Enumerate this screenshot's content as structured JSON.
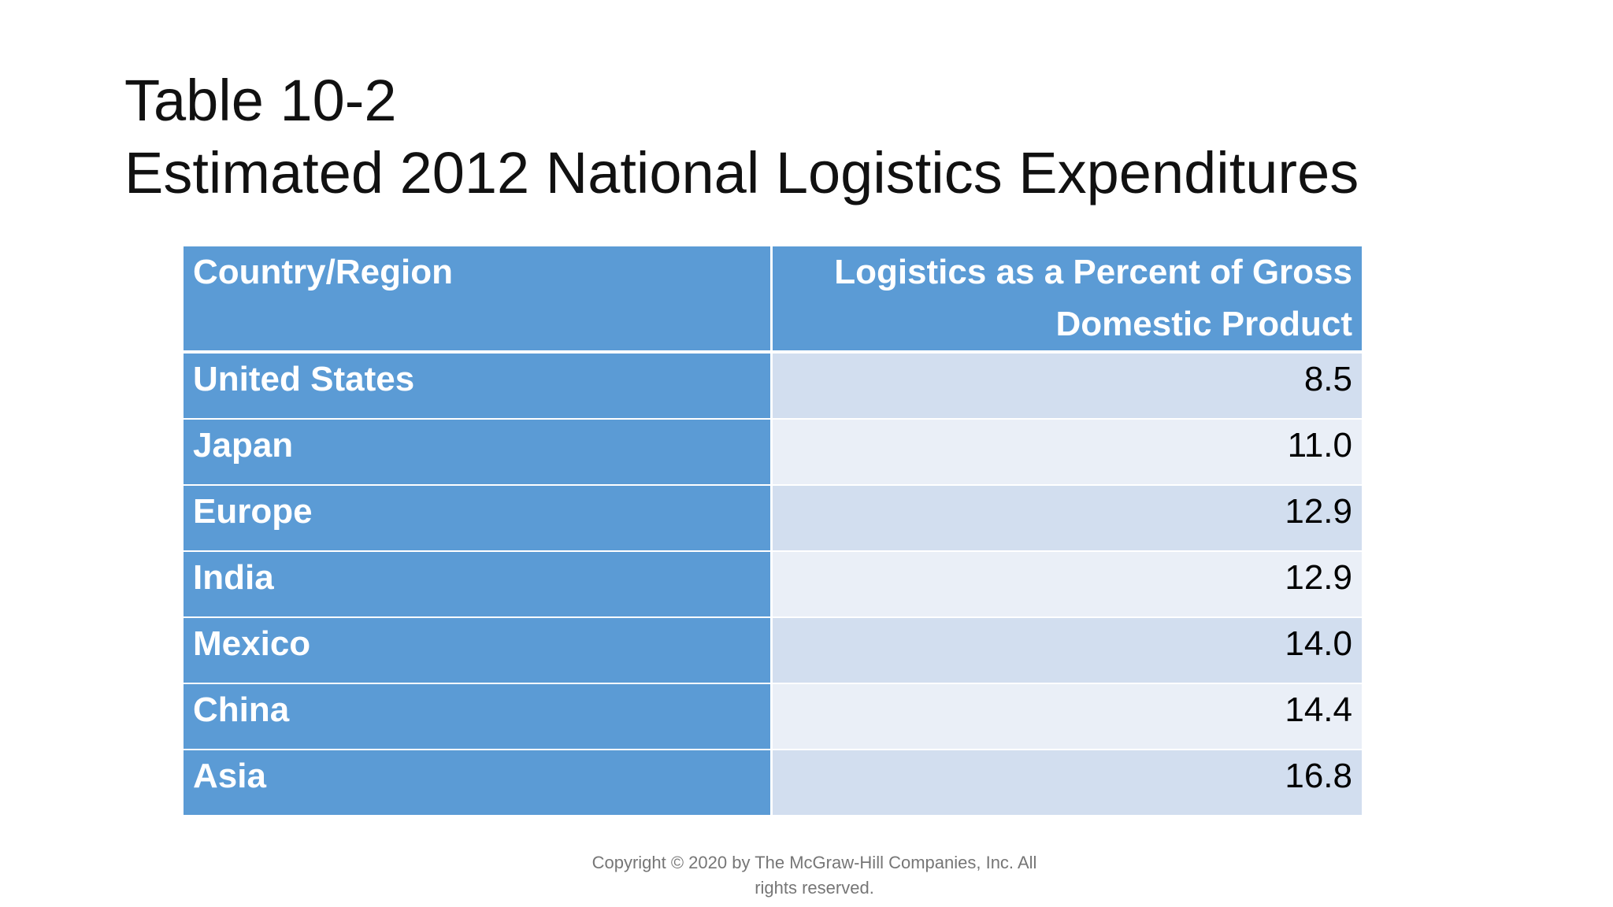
{
  "slide": {
    "title_line1": "Table 10-2",
    "title_line2": "Estimated 2012 National Logistics Expenditures"
  },
  "table": {
    "headers": {
      "country": "Country/Region",
      "value": "Logistics as a Percent of Gross Domestic Product"
    },
    "rows": [
      {
        "country": "United States",
        "value": "8.5"
      },
      {
        "country": "Japan",
        "value": "11.0"
      },
      {
        "country": "Europe",
        "value": "12.9"
      },
      {
        "country": "India",
        "value": "12.9"
      },
      {
        "country": "Mexico",
        "value": "14.0"
      },
      {
        "country": "China",
        "value": "14.4"
      },
      {
        "country": "Asia",
        "value": "16.8"
      }
    ]
  },
  "footer": {
    "copyright": "Copyright © 2020 by The McGraw-Hill Companies, Inc. All rights reserved."
  },
  "colors": {
    "header_blue": "#5b9bd5",
    "row_band_dark": "#d2deef",
    "row_band_light": "#eaeff7",
    "copyright_gray": "#767676"
  }
}
